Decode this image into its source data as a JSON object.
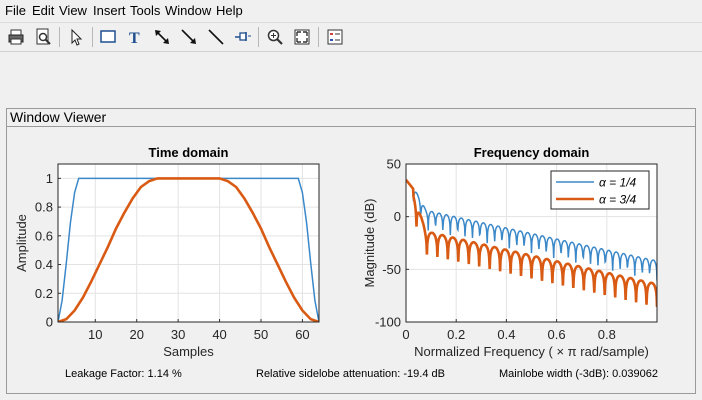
{
  "menu": [
    "File",
    "Edit",
    "View",
    "Insert",
    "Tools",
    "Window",
    "Help"
  ],
  "toolbar": {
    "icons": [
      "print-icon",
      "print-preview-icon",
      "pointer-icon",
      "rectangle-icon",
      "text-icon",
      "double-arrow-icon",
      "arrow-icon",
      "line-icon",
      "pin-icon",
      "zoom-in-icon",
      "fit-icon",
      "legend-icon"
    ]
  },
  "panel": {
    "title": "Window Viewer"
  },
  "status": {
    "leakage": "Leakage Factor: 1.14 %",
    "sidelobe": "Relative sidelobe attenuation: -19.4 dB",
    "mainlobe": "Mainlobe width (-3dB): 0.039062"
  },
  "colors": {
    "series1": "#3b88c9",
    "series2": "#d95a13"
  },
  "chart_data": [
    {
      "type": "line",
      "title": "Time domain",
      "xlabel": "Samples",
      "ylabel": "Amplitude",
      "xlim": [
        1,
        64
      ],
      "ylim": [
        0,
        1.1
      ],
      "xticks": [
        10,
        20,
        30,
        40,
        50,
        60
      ],
      "yticks": [
        0,
        0.2,
        0.4,
        0.6,
        0.8,
        1
      ],
      "ytick_labels": [
        "0",
        "0.2",
        "0.4",
        "0.6",
        "0.8",
        "1"
      ],
      "grid": true,
      "series": [
        {
          "x": [
            1,
            2,
            3,
            4,
            5,
            6,
            7,
            8,
            9,
            58,
            59,
            60,
            61,
            62,
            63,
            64
          ],
          "values": [
            0,
            0.15,
            0.41,
            0.69,
            0.9,
            1,
            1,
            1,
            1,
            1,
            1,
            0.9,
            0.69,
            0.41,
            0.15,
            0
          ]
        },
        {
          "x": [
            1,
            3,
            5,
            7,
            9,
            11,
            13,
            15,
            17,
            19,
            21,
            23,
            25,
            40,
            42,
            44,
            46,
            48,
            50,
            52,
            54,
            56,
            58,
            60,
            62,
            64
          ],
          "values": [
            0,
            0.02,
            0.08,
            0.17,
            0.28,
            0.4,
            0.52,
            0.65,
            0.76,
            0.86,
            0.94,
            0.98,
            1,
            1,
            0.98,
            0.94,
            0.86,
            0.76,
            0.65,
            0.52,
            0.4,
            0.28,
            0.17,
            0.08,
            0.02,
            0
          ]
        }
      ]
    },
    {
      "type": "line",
      "title": "Frequency domain",
      "xlabel": "Normalized Frequency  ( × π rad/sample)",
      "ylabel": "Magnitude (dB)",
      "xlim": [
        0,
        1
      ],
      "ylim": [
        -100,
        50
      ],
      "xticks": [
        0,
        0.2,
        0.4,
        0.6,
        0.8
      ],
      "xtick_labels": [
        "0",
        "0.2",
        "0.4",
        "0.6",
        "0.8"
      ],
      "yticks": [
        -100,
        -50,
        0,
        50
      ],
      "ytick_labels": [
        "-100",
        "-50",
        "0",
        "50"
      ],
      "grid": true,
      "legend_position": "top-right",
      "series": [
        {
          "name": "α = 1/4",
          "max_db": 35,
          "floor_start": 0,
          "floor_end": -48,
          "lobes": 34,
          "nulls": 60
        },
        {
          "name": "α = 3/4",
          "max_db": 35,
          "floor_start": -20,
          "floor_end": -70,
          "lobes": 24,
          "nulls": 70
        }
      ]
    }
  ]
}
